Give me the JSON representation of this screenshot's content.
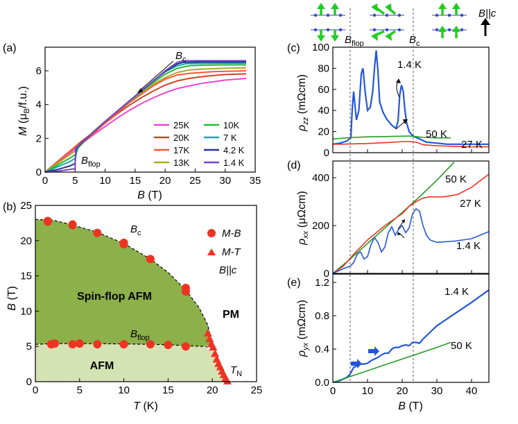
{
  "figure": {
    "panels": {
      "a": "(a)",
      "b": "(b)",
      "c": "(c)",
      "d": "(d)",
      "e": "(e)"
    }
  },
  "colors": {
    "25K": "#ee44cc",
    "20K": "#cc4422",
    "17K": "#ff5533",
    "13K": "#aaaa22",
    "10K": "#22bb33",
    "7K": "#11aaaa",
    "4.2K": "#223399",
    "1.4K": "#7744cc",
    "blue": "#2255dd",
    "green": "#229922",
    "red": "#ee3322",
    "afm": "#d5e2b4",
    "spinflop": "#8cb04a",
    "arrowgreen": "#22cc22",
    "dot": "#3344cc"
  },
  "chart_data": [
    {
      "id": "a",
      "type": "line",
      "xlabel": "B (T)",
      "ylabel": "M (μB/f.u.)",
      "xlim": [
        0,
        35
      ],
      "ylim": [
        0,
        7.4
      ],
      "xticks": [
        "0",
        "5",
        "10",
        "15",
        "20",
        "25",
        "30",
        "35"
      ],
      "yticks": [
        "0",
        "2",
        "4",
        "6"
      ],
      "annotations": {
        "bc": "B",
        "bc_sub": "c",
        "bflop": "B",
        "bflop_sub": "flop"
      },
      "legend": [
        "25K",
        "20K",
        "17K",
        "13K",
        "10K",
        "7 K",
        "4.2 K",
        "1.4 K"
      ],
      "series": [
        {
          "name": "25K",
          "x": [
            0,
            2,
            4,
            6,
            8,
            10,
            12,
            14,
            16,
            18,
            20,
            22,
            24,
            26,
            28,
            30,
            33.5
          ],
          "y": [
            0,
            0.55,
            1.1,
            1.65,
            2.2,
            2.7,
            3.2,
            3.65,
            4.05,
            4.4,
            4.7,
            4.95,
            5.1,
            5.25,
            5.35,
            5.45,
            5.55
          ]
        },
        {
          "name": "20K",
          "x": [
            0,
            2,
            4,
            6,
            8,
            10,
            12,
            14,
            16,
            18,
            20,
            22,
            24,
            26,
            28,
            30,
            33.5
          ],
          "y": [
            0,
            0.6,
            1.2,
            1.8,
            2.35,
            2.9,
            3.45,
            3.95,
            4.4,
            4.8,
            5.15,
            5.4,
            5.55,
            5.65,
            5.72,
            5.78,
            5.82
          ]
        },
        {
          "name": "17K",
          "x": [
            0,
            2,
            4,
            5.5,
            7,
            10,
            12,
            14,
            16,
            18,
            20,
            22,
            24,
            26,
            28,
            30,
            33.5
          ],
          "y": [
            0,
            0.6,
            1.2,
            1.6,
            1.95,
            2.9,
            3.5,
            4.1,
            4.6,
            5.1,
            5.5,
            5.75,
            5.85,
            5.9,
            5.95,
            5.97,
            6.0
          ]
        },
        {
          "name": "13K",
          "x": [
            0,
            2,
            4,
            5.2,
            6,
            8,
            10,
            12,
            14,
            16,
            18,
            20,
            22,
            24,
            26,
            30,
            33.5
          ],
          "y": [
            0,
            0.5,
            1.0,
            1.3,
            1.6,
            2.4,
            3.0,
            3.6,
            4.15,
            4.7,
            5.2,
            5.6,
            5.9,
            6.05,
            6.1,
            6.15,
            6.18
          ]
        },
        {
          "name": "10K",
          "x": [
            0,
            2,
            4,
            5.1,
            5.6,
            8,
            10,
            12,
            14,
            16,
            18,
            20,
            22,
            24,
            26,
            30,
            33.5
          ],
          "y": [
            0,
            0.4,
            0.8,
            1.05,
            1.5,
            2.35,
            3.0,
            3.6,
            4.2,
            4.75,
            5.3,
            5.8,
            6.15,
            6.3,
            6.33,
            6.35,
            6.35
          ]
        },
        {
          "name": "7 K",
          "x": [
            0,
            2,
            4,
            5,
            5.4,
            8,
            10,
            12,
            14,
            16,
            18,
            20,
            22,
            23.5,
            26,
            30,
            33.5
          ],
          "y": [
            0,
            0.3,
            0.6,
            0.8,
            1.45,
            2.35,
            3.0,
            3.6,
            4.2,
            4.8,
            5.4,
            5.95,
            6.3,
            6.42,
            6.44,
            6.45,
            6.45
          ]
        },
        {
          "name": "4.2 K",
          "x": [
            0,
            2,
            4,
            5,
            5.2,
            8,
            10,
            12,
            14,
            16,
            18,
            20,
            22,
            23,
            26,
            30,
            33.5
          ],
          "y": [
            0,
            0.15,
            0.35,
            0.5,
            1.42,
            2.35,
            3.0,
            3.6,
            4.2,
            4.8,
            5.4,
            5.95,
            6.4,
            6.5,
            6.52,
            6.52,
            6.52
          ]
        },
        {
          "name": "1.4 K",
          "x": [
            0,
            2,
            4,
            5,
            5.1,
            8,
            10,
            12,
            14,
            16,
            18,
            20,
            22,
            23,
            26,
            30,
            33.5
          ],
          "y": [
            0,
            0.05,
            0.15,
            0.2,
            1.42,
            2.35,
            3.0,
            3.6,
            4.2,
            4.8,
            5.4,
            6.0,
            6.5,
            6.6,
            6.6,
            6.6,
            6.6
          ]
        }
      ]
    },
    {
      "id": "b",
      "type": "scatter",
      "xlabel": "T (K)",
      "ylabel": "B (T)",
      "xlim": [
        0,
        25
      ],
      "ylim": [
        0,
        25
      ],
      "xticks": [
        "0",
        "5",
        "10",
        "15",
        "20",
        "25"
      ],
      "yticks": [
        "0",
        "5",
        "10",
        "15",
        "20",
        "25"
      ],
      "regions": {
        "spinflop": "Spin-flop AFM",
        "pm": "PM",
        "afm": "AFM"
      },
      "annotations": {
        "bc": "B",
        "bc_sub": "c",
        "bflop": "B",
        "bflop_sub": "flop",
        "tn": "T",
        "tn_sub": "N",
        "field": "B||c"
      },
      "legend": [
        "M-B",
        "M-T"
      ],
      "series": [
        {
          "name": "M-B",
          "marker": "circle",
          "x": [
            1.4,
            1.4,
            4.2,
            4.2,
            7,
            10,
            10,
            13,
            17,
            17,
            1.8,
            2.2,
            4.2,
            5,
            7,
            10,
            13,
            15,
            17
          ],
          "y": [
            22.8,
            22.7,
            22.3,
            22.2,
            21.1,
            19.7,
            19.5,
            17.4,
            13.3,
            12.8,
            5.3,
            5.4,
            5.3,
            5.4,
            5.3,
            5.3,
            5.3,
            5.2,
            5.0
          ]
        },
        {
          "name": "M-T",
          "marker": "triangle",
          "x": [
            19.5,
            19.7,
            19.9,
            20.1,
            20.3,
            20.5,
            20.7,
            20.9,
            21.1,
            21.3,
            21.5,
            21.7
          ],
          "y": [
            6.9,
            6.1,
            5.4,
            4.9,
            4.0,
            3.2,
            2.6,
            2.1,
            1.5,
            1.0,
            0.5,
            0.1
          ]
        }
      ]
    },
    {
      "id": "c",
      "type": "line",
      "ylabel": "ρzz (mΩcm)",
      "xlim": [
        0,
        45
      ],
      "ylim": [
        0,
        100
      ],
      "yticks": [
        "0",
        "20",
        "40",
        "60",
        "80",
        "100"
      ],
      "annotations": {
        "bflop": "B",
        "bflop_sub": "flop",
        "bc": "B",
        "bc_sub": "c",
        "field": "B||c"
      },
      "labels": [
        "1.4 K",
        "50 K",
        "27 K"
      ],
      "series": [
        {
          "name": "1.4 K",
          "x": [
            0,
            2,
            4,
            5.2,
            5.6,
            6,
            6.4,
            6.8,
            7.5,
            8.2,
            8.7,
            9.3,
            10,
            10.8,
            11.5,
            12,
            12.5,
            13,
            13.5,
            14.5,
            15.5,
            17,
            18.2,
            18.8,
            19.3,
            19.8,
            20.3,
            20.8,
            21.3,
            22,
            23,
            25,
            27,
            30,
            33,
            36,
            40,
            45
          ],
          "y": [
            8,
            9,
            11,
            14,
            42,
            58,
            44,
            31,
            40,
            75,
            80,
            58,
            40,
            43,
            58,
            80,
            97,
            78,
            48,
            38,
            32,
            26,
            23,
            30,
            55,
            64,
            58,
            40,
            28,
            20,
            16,
            13,
            10,
            9,
            8,
            8,
            8,
            8
          ]
        },
        {
          "name": "50 K",
          "x": [
            0,
            2,
            4,
            6,
            10,
            14,
            18,
            22,
            24,
            26,
            30,
            34
          ],
          "y": [
            13,
            13.5,
            14,
            14.5,
            15,
            15.2,
            15.5,
            15.8,
            15.2,
            14.5,
            14,
            14
          ]
        },
        {
          "name": "27 K",
          "x": [
            0,
            2,
            5,
            10,
            15,
            18,
            20,
            22,
            24,
            26,
            30,
            35,
            40,
            45
          ],
          "y": [
            8,
            8,
            8.3,
            8.7,
            9.5,
            10,
            10.5,
            10.5,
            10,
            7.5,
            6.5,
            6,
            5.5,
            5.5
          ]
        }
      ]
    },
    {
      "id": "d",
      "type": "line",
      "ylabel": "ρxx (μΩcm)",
      "xlim": [
        0,
        45
      ],
      "ylim": [
        0,
        470
      ],
      "yticks": [
        "0",
        "200",
        "400"
      ],
      "labels": [
        "50 K",
        "27 K",
        "1.4 K"
      ],
      "series": [
        {
          "name": "50 K",
          "x": [
            0,
            5,
            10,
            15,
            20,
            25,
            30,
            35
          ],
          "y": [
            0,
            60,
            125,
            190,
            255,
            320,
            390,
            465
          ]
        },
        {
          "name": "27 K",
          "x": [
            0,
            3,
            6,
            10,
            15,
            20,
            22,
            24,
            26,
            28,
            32,
            36,
            40,
            45
          ],
          "y": [
            0,
            30,
            80,
            140,
            200,
            250,
            280,
            300,
            315,
            320,
            320,
            330,
            360,
            415
          ]
        },
        {
          "name": "1.4 K",
          "x": [
            0,
            3,
            5,
            6,
            7,
            8,
            9,
            10,
            11,
            12,
            13,
            14,
            15,
            16,
            17,
            18,
            19,
            20,
            21,
            22,
            23,
            24,
            25,
            26,
            27,
            28,
            30,
            35,
            40,
            45
          ],
          "y": [
            0,
            20,
            30,
            45,
            80,
            90,
            60,
            70,
            120,
            150,
            130,
            90,
            110,
            170,
            195,
            160,
            185,
            200,
            170,
            190,
            250,
            270,
            260,
            200,
            160,
            140,
            130,
            135,
            145,
            175
          ]
        }
      ]
    },
    {
      "id": "e",
      "type": "line",
      "xlabel": "B (T)",
      "ylabel": "ρyx (mΩcm)",
      "xlim": [
        0,
        45
      ],
      "ylim": [
        0,
        1.3
      ],
      "xticks": [
        "0",
        "10",
        "20",
        "30",
        "40"
      ],
      "yticks": [
        "0.0",
        "0.4",
        "0.8",
        "1.2"
      ],
      "labels": [
        "1.4 K",
        "50 K"
      ],
      "series": [
        {
          "name": "1.4 K",
          "x": [
            0,
            2,
            4,
            5,
            6,
            7,
            8,
            9,
            10,
            11,
            12,
            13,
            14,
            15,
            16,
            17,
            18,
            19,
            20,
            21,
            22,
            23,
            24,
            25,
            26,
            28,
            30,
            35,
            40,
            45
          ],
          "y": [
            0,
            0.02,
            0.06,
            0.1,
            0.18,
            0.2,
            0.22,
            0.22,
            0.23,
            0.26,
            0.28,
            0.3,
            0.33,
            0.35,
            0.35,
            0.4,
            0.42,
            0.42,
            0.44,
            0.45,
            0.44,
            0.48,
            0.48,
            0.47,
            0.52,
            0.6,
            0.68,
            0.82,
            0.96,
            1.11
          ]
        },
        {
          "name": "50 K",
          "x": [
            0,
            5,
            10,
            15,
            20,
            25,
            30,
            34
          ],
          "y": [
            0,
            0.07,
            0.14,
            0.21,
            0.28,
            0.35,
            0.42,
            0.48
          ]
        }
      ]
    }
  ]
}
